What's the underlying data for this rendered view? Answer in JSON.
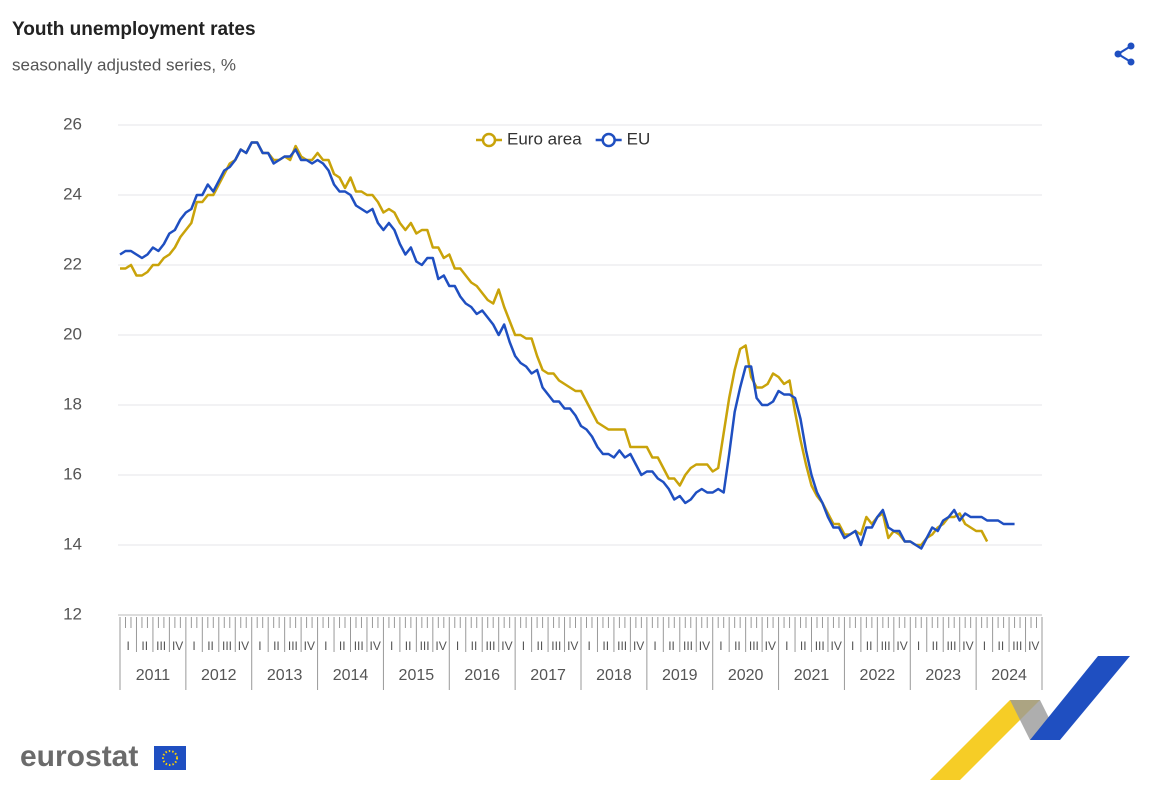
{
  "chart_data": {
    "type": "line",
    "title": "Youth unemployment rates",
    "subtitle": "seasonally adjusted series, %",
    "logo": "eurostat",
    "x": [
      "2011-01",
      "2011-02",
      "2011-03",
      "2011-04",
      "2011-05",
      "2011-06",
      "2011-07",
      "2011-08",
      "2011-09",
      "2011-10",
      "2011-11",
      "2011-12",
      "2012-01",
      "2012-02",
      "2012-03",
      "2012-04",
      "2012-05",
      "2012-06",
      "2012-07",
      "2012-08",
      "2012-09",
      "2012-10",
      "2012-11",
      "2012-12",
      "2013-01",
      "2013-02",
      "2013-03",
      "2013-04",
      "2013-05",
      "2013-06",
      "2013-07",
      "2013-08",
      "2013-09",
      "2013-10",
      "2013-11",
      "2013-12",
      "2014-01",
      "2014-02",
      "2014-03",
      "2014-04",
      "2014-05",
      "2014-06",
      "2014-07",
      "2014-08",
      "2014-09",
      "2014-10",
      "2014-11",
      "2014-12",
      "2015-01",
      "2015-02",
      "2015-03",
      "2015-04",
      "2015-05",
      "2015-06",
      "2015-07",
      "2015-08",
      "2015-09",
      "2015-10",
      "2015-11",
      "2015-12",
      "2016-01",
      "2016-02",
      "2016-03",
      "2016-04",
      "2016-05",
      "2016-06",
      "2016-07",
      "2016-08",
      "2016-09",
      "2016-10",
      "2016-11",
      "2016-12",
      "2017-01",
      "2017-02",
      "2017-03",
      "2017-04",
      "2017-05",
      "2017-06",
      "2017-07",
      "2017-08",
      "2017-09",
      "2017-10",
      "2017-11",
      "2017-12",
      "2018-01",
      "2018-02",
      "2018-03",
      "2018-04",
      "2018-05",
      "2018-06",
      "2018-07",
      "2018-08",
      "2018-09",
      "2018-10",
      "2018-11",
      "2018-12",
      "2019-01",
      "2019-02",
      "2019-03",
      "2019-04",
      "2019-05",
      "2019-06",
      "2019-07",
      "2019-08",
      "2019-09",
      "2019-10",
      "2019-11",
      "2019-12",
      "2020-01",
      "2020-02",
      "2020-03",
      "2020-04",
      "2020-05",
      "2020-06",
      "2020-07",
      "2020-08",
      "2020-09",
      "2020-10",
      "2020-11",
      "2020-12",
      "2021-01",
      "2021-02",
      "2021-03",
      "2021-04",
      "2021-05",
      "2021-06",
      "2021-07",
      "2021-08",
      "2021-09",
      "2021-10",
      "2021-11",
      "2021-12",
      "2022-01",
      "2022-02",
      "2022-03",
      "2022-04",
      "2022-05",
      "2022-06",
      "2022-07",
      "2022-08",
      "2022-09",
      "2022-10",
      "2022-11",
      "2022-12",
      "2023-01",
      "2023-02",
      "2023-03",
      "2023-04",
      "2023-05",
      "2023-06",
      "2023-07",
      "2023-08",
      "2023-09",
      "2023-10",
      "2023-11",
      "2023-12",
      "2024-01",
      "2024-02",
      "2024-03",
      "2024-04",
      "2024-05",
      "2024-06",
      "2024-07",
      "2024-08"
    ],
    "series": [
      {
        "name": "Euro area",
        "color": "#c9a30a",
        "values": [
          21.9,
          21.9,
          22.0,
          21.7,
          21.7,
          21.8,
          22.0,
          22.0,
          22.2,
          22.3,
          22.5,
          22.8,
          23.0,
          23.2,
          23.8,
          23.8,
          24.0,
          24.0,
          24.3,
          24.6,
          24.9,
          25.0,
          25.3,
          25.2,
          25.5,
          25.5,
          25.2,
          25.2,
          25.0,
          25.0,
          25.1,
          25.0,
          25.4,
          25.1,
          25.0,
          25.0,
          25.2,
          25.0,
          25.0,
          24.6,
          24.5,
          24.2,
          24.5,
          24.1,
          24.1,
          24.0,
          24.0,
          23.8,
          23.5,
          23.6,
          23.5,
          23.2,
          23.0,
          23.2,
          22.9,
          23.0,
          23.0,
          22.5,
          22.5,
          22.2,
          22.3,
          21.9,
          21.9,
          21.7,
          21.5,
          21.4,
          21.2,
          21.0,
          20.9,
          21.3,
          20.8,
          20.4,
          20.0,
          20.0,
          19.9,
          19.9,
          19.4,
          19.0,
          18.9,
          18.9,
          18.7,
          18.6,
          18.5,
          18.4,
          18.4,
          18.1,
          17.8,
          17.5,
          17.4,
          17.3,
          17.3,
          17.3,
          17.3,
          16.8,
          16.8,
          16.8,
          16.8,
          16.5,
          16.5,
          16.2,
          15.9,
          15.9,
          15.7,
          16.0,
          16.2,
          16.3,
          16.3,
          16.3,
          16.1,
          16.2,
          17.2,
          18.2,
          19.0,
          19.6,
          19.7,
          18.8,
          18.5,
          18.5,
          18.6,
          18.9,
          18.8,
          18.6,
          18.7,
          17.8,
          17.0,
          16.3,
          15.7,
          15.4,
          15.2,
          14.9,
          14.6,
          14.6,
          14.3,
          14.3,
          14.4,
          14.3,
          14.8,
          14.6,
          14.8,
          14.9,
          14.2,
          14.4,
          14.3,
          14.1,
          14.1,
          14.0,
          14.0,
          14.2,
          14.3,
          14.5,
          14.6,
          14.8,
          14.8,
          14.9,
          14.6,
          14.5,
          14.4,
          14.4,
          14.1,
          null,
          null,
          null,
          null,
          null
        ]
      },
      {
        "name": "EU",
        "color": "#1f4fc1",
        "values": [
          22.3,
          22.4,
          22.4,
          22.3,
          22.2,
          22.3,
          22.5,
          22.4,
          22.6,
          22.9,
          23.0,
          23.3,
          23.5,
          23.6,
          24.0,
          24.0,
          24.3,
          24.1,
          24.4,
          24.7,
          24.8,
          25.0,
          25.3,
          25.2,
          25.5,
          25.5,
          25.2,
          25.2,
          24.9,
          25.0,
          25.1,
          25.1,
          25.3,
          25.0,
          25.0,
          24.9,
          25.0,
          24.9,
          24.7,
          24.3,
          24.1,
          24.1,
          24.0,
          23.7,
          23.6,
          23.5,
          23.6,
          23.2,
          23.0,
          23.2,
          23.0,
          22.6,
          22.3,
          22.5,
          22.1,
          22.0,
          22.2,
          22.2,
          21.6,
          21.7,
          21.4,
          21.4,
          21.1,
          20.9,
          20.8,
          20.6,
          20.7,
          20.5,
          20.3,
          20.0,
          20.3,
          19.8,
          19.4,
          19.2,
          19.1,
          18.9,
          19.0,
          18.5,
          18.3,
          18.1,
          18.1,
          17.9,
          17.9,
          17.7,
          17.4,
          17.3,
          17.1,
          16.8,
          16.6,
          16.6,
          16.5,
          16.7,
          16.5,
          16.6,
          16.3,
          16.0,
          16.1,
          16.1,
          15.9,
          15.8,
          15.6,
          15.3,
          15.4,
          15.2,
          15.3,
          15.5,
          15.6,
          15.5,
          15.5,
          15.6,
          15.5,
          16.6,
          17.8,
          18.5,
          19.1,
          19.1,
          18.2,
          18.0,
          18.0,
          18.1,
          18.4,
          18.3,
          18.3,
          18.2,
          17.6,
          16.7,
          16.0,
          15.5,
          15.2,
          14.8,
          14.5,
          14.5,
          14.2,
          14.3,
          14.4,
          14.0,
          14.5,
          14.5,
          14.8,
          15.0,
          14.5,
          14.4,
          14.4,
          14.1,
          14.1,
          14.0,
          13.9,
          14.2,
          14.5,
          14.4,
          14.7,
          14.8,
          15.0,
          14.7,
          14.9,
          14.8,
          14.8,
          14.8,
          14.7,
          14.7,
          14.7,
          14.6,
          14.6,
          14.6
        ]
      }
    ],
    "xlim": [
      "2011-01",
      "2024-12"
    ],
    "xticks": [
      "2011",
      "2012",
      "2013",
      "2014",
      "2015",
      "2016",
      "2017",
      "2018",
      "2019",
      "2020",
      "2021",
      "2022",
      "2023",
      "2024"
    ],
    "quarter_labels": [
      "I",
      "II",
      "III",
      "IV"
    ],
    "ylim": [
      12,
      26
    ],
    "yticks": [
      12,
      14,
      16,
      18,
      20,
      22,
      24,
      26
    ],
    "grid": true,
    "legend": "top"
  }
}
